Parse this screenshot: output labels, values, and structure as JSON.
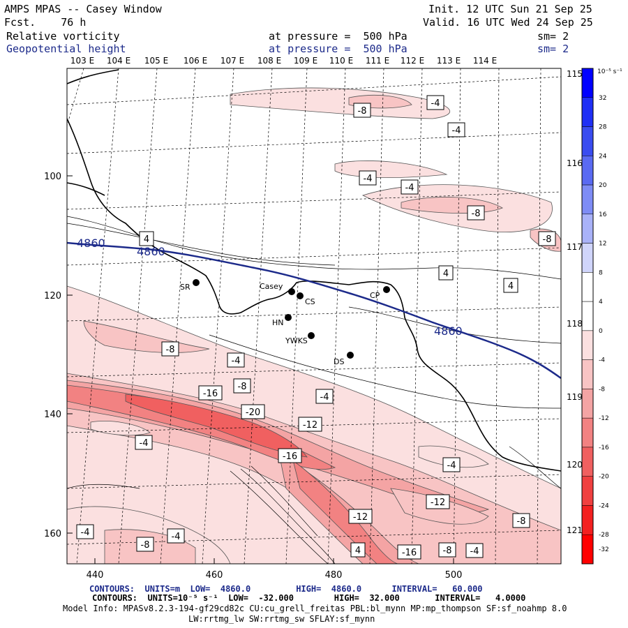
{
  "header": {
    "title": "AMPS MPAS -- Casey Window",
    "fcst": "Fcst.    76 h",
    "init": "Init. 12 UTC Sun 21 Sep 25",
    "valid": "Valid. 16 UTC Wed 24 Sep 25",
    "field1": "Relative vorticity",
    "field1_level": "at pressure =  500 hPa",
    "field1_sm": "sm= 2",
    "field2": "Geopotential height",
    "field2_level": "at pressure =  500 hPa",
    "field2_sm": "sm= 2"
  },
  "map": {
    "top_lon_labels": [
      "103 E",
      "104 E",
      "105 E",
      "106 E",
      "107 E",
      "108 E",
      "109 E",
      "110 E",
      "111 E",
      "112 E",
      "113 E",
      "114 E"
    ],
    "right_lon_labels": [
      "115 E",
      "116 E",
      "117 E",
      "118 E",
      "119 E",
      "120 E",
      "121 E"
    ],
    "y_ticks": [
      "100",
      "120",
      "140",
      "160"
    ],
    "x_ticks": [
      "440",
      "460",
      "480",
      "500"
    ],
    "height_contour_label": "4860",
    "height_contour_color": "#1c2a8a",
    "coast_color": "#000000",
    "stations": [
      {
        "name": "SR"
      },
      {
        "name": "Casey"
      },
      {
        "name": "CS"
      },
      {
        "name": "CP"
      },
      {
        "name": "HN"
      },
      {
        "name": "YWKS"
      },
      {
        "name": "DS"
      }
    ],
    "vorticity_labels": [
      "-8",
      "-4",
      "-4",
      "-4",
      "-4",
      "-8",
      "-8",
      "4",
      "4",
      "4",
      "-8",
      "-4",
      "-16",
      "-8",
      "-4",
      "-20",
      "-12",
      "-4",
      "-16",
      "-4",
      "-12",
      "-8",
      "-12",
      "4",
      "-4",
      "-4",
      "-8",
      "-16",
      "-8",
      "-4"
    ]
  },
  "colorbar": {
    "unit": "10⁻⁵ s⁻¹",
    "labels": [
      "32",
      "28",
      "24",
      "20",
      "16",
      "12",
      "8",
      "4",
      "0",
      "-4",
      "-8",
      "-12",
      "-16",
      "-20",
      "-24",
      "-28",
      "-32"
    ],
    "colors": [
      "#0000ff",
      "#1f2ff5",
      "#3a4cf0",
      "#5a6af2",
      "#7e8cf5",
      "#a9b2f8",
      "#d0d5fb",
      "#ffffff",
      "#ffffff",
      "#fbe0e0",
      "#f8c4c4",
      "#f4a4a4",
      "#f28282",
      "#f06060",
      "#f04040",
      "#f32020",
      "#ff0000"
    ]
  },
  "footer": {
    "line1": "CONTOURS:  UNITS=m  LOW=  4860.0         HIGH=  4860.0      INTERVAL=   60.000",
    "line2": "CONTOURS:  UNITS=10⁻⁵ s⁻¹  LOW=  -32.000        HIGH=  32.000       INTERVAL=   4.0000",
    "line3": "Model Info: MPASv8.2.3-194-gf29cd82c CU:cu_grell_freitas PBL:bl_mynn MP:mp_thompson SF:sf_noahmp 8.0",
    "line4": "LW:rrtmg_lw SW:rrtmg_sw SFLAY:sf_mynn"
  }
}
